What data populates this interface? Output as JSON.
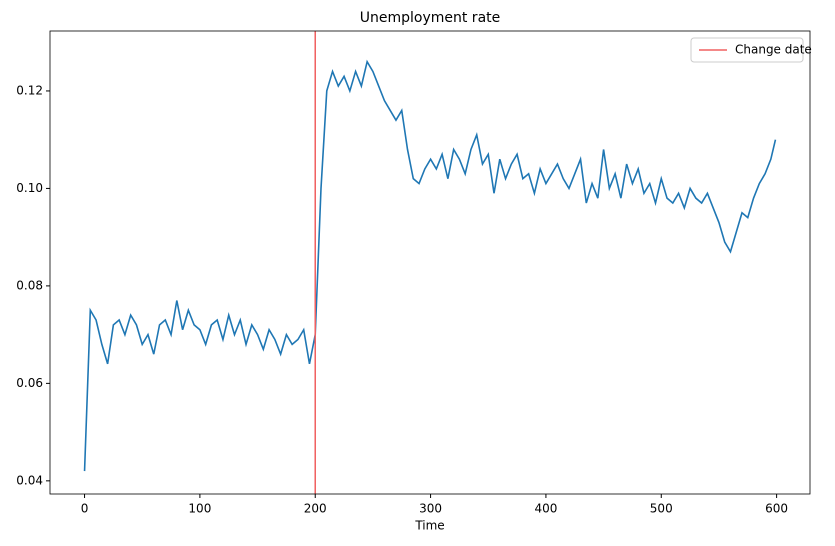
{
  "chart_data": {
    "type": "line",
    "title": "Unemployment rate",
    "x_label": "Time",
    "x": [
      0,
      5,
      10,
      15,
      20,
      25,
      30,
      35,
      40,
      45,
      50,
      55,
      60,
      65,
      70,
      75,
      80,
      85,
      90,
      95,
      100,
      105,
      110,
      115,
      120,
      125,
      130,
      135,
      140,
      145,
      150,
      155,
      160,
      165,
      170,
      175,
      180,
      185,
      190,
      195,
      200,
      205,
      210,
      215,
      220,
      225,
      230,
      235,
      240,
      245,
      250,
      255,
      260,
      265,
      270,
      275,
      280,
      285,
      290,
      295,
      300,
      305,
      310,
      315,
      320,
      325,
      330,
      335,
      340,
      345,
      350,
      355,
      360,
      365,
      370,
      375,
      380,
      385,
      390,
      395,
      400,
      405,
      410,
      415,
      420,
      425,
      430,
      435,
      440,
      445,
      450,
      455,
      460,
      465,
      470,
      475,
      480,
      485,
      490,
      495,
      500,
      505,
      510,
      515,
      520,
      525,
      530,
      535,
      540,
      545,
      550,
      555,
      560,
      565,
      570,
      575,
      580,
      585,
      590,
      595,
      599
    ],
    "values": [
      0.042,
      0.075,
      0.073,
      0.068,
      0.064,
      0.072,
      0.073,
      0.07,
      0.074,
      0.072,
      0.068,
      0.07,
      0.066,
      0.072,
      0.073,
      0.07,
      0.077,
      0.071,
      0.075,
      0.072,
      0.071,
      0.068,
      0.072,
      0.073,
      0.069,
      0.074,
      0.07,
      0.073,
      0.068,
      0.072,
      0.07,
      0.067,
      0.071,
      0.069,
      0.066,
      0.07,
      0.068,
      0.069,
      0.071,
      0.064,
      0.07,
      0.1,
      0.12,
      0.124,
      0.121,
      0.123,
      0.12,
      0.124,
      0.121,
      0.126,
      0.124,
      0.121,
      0.118,
      0.116,
      0.114,
      0.116,
      0.108,
      0.102,
      0.101,
      0.104,
      0.106,
      0.104,
      0.107,
      0.102,
      0.108,
      0.106,
      0.103,
      0.108,
      0.111,
      0.105,
      0.107,
      0.099,
      0.106,
      0.102,
      0.105,
      0.107,
      0.102,
      0.103,
      0.099,
      0.104,
      0.101,
      0.103,
      0.105,
      0.102,
      0.1,
      0.103,
      0.106,
      0.097,
      0.101,
      0.098,
      0.108,
      0.1,
      0.103,
      0.098,
      0.105,
      0.101,
      0.104,
      0.099,
      0.101,
      0.097,
      0.102,
      0.098,
      0.097,
      0.099,
      0.096,
      0.1,
      0.098,
      0.097,
      0.099,
      0.096,
      0.093,
      0.089,
      0.087,
      0.091,
      0.095,
      0.094,
      0.098,
      0.101,
      0.103,
      0.106,
      0.11
    ],
    "color": "#1f77b4",
    "vline": {
      "x": 200,
      "label": "Change date",
      "color": "#f06060"
    },
    "legend": "upper right",
    "xlim": [
      -29.95,
      628.95
    ],
    "xticks": [
      0,
      100,
      200,
      300,
      400,
      500,
      600
    ],
    "ylim": [
      0.0373,
      0.1323
    ],
    "yticks": [
      0.04,
      0.06,
      0.08,
      {
        "value": 0.1,
        "label": "0.10"
      },
      0.12
    ]
  }
}
